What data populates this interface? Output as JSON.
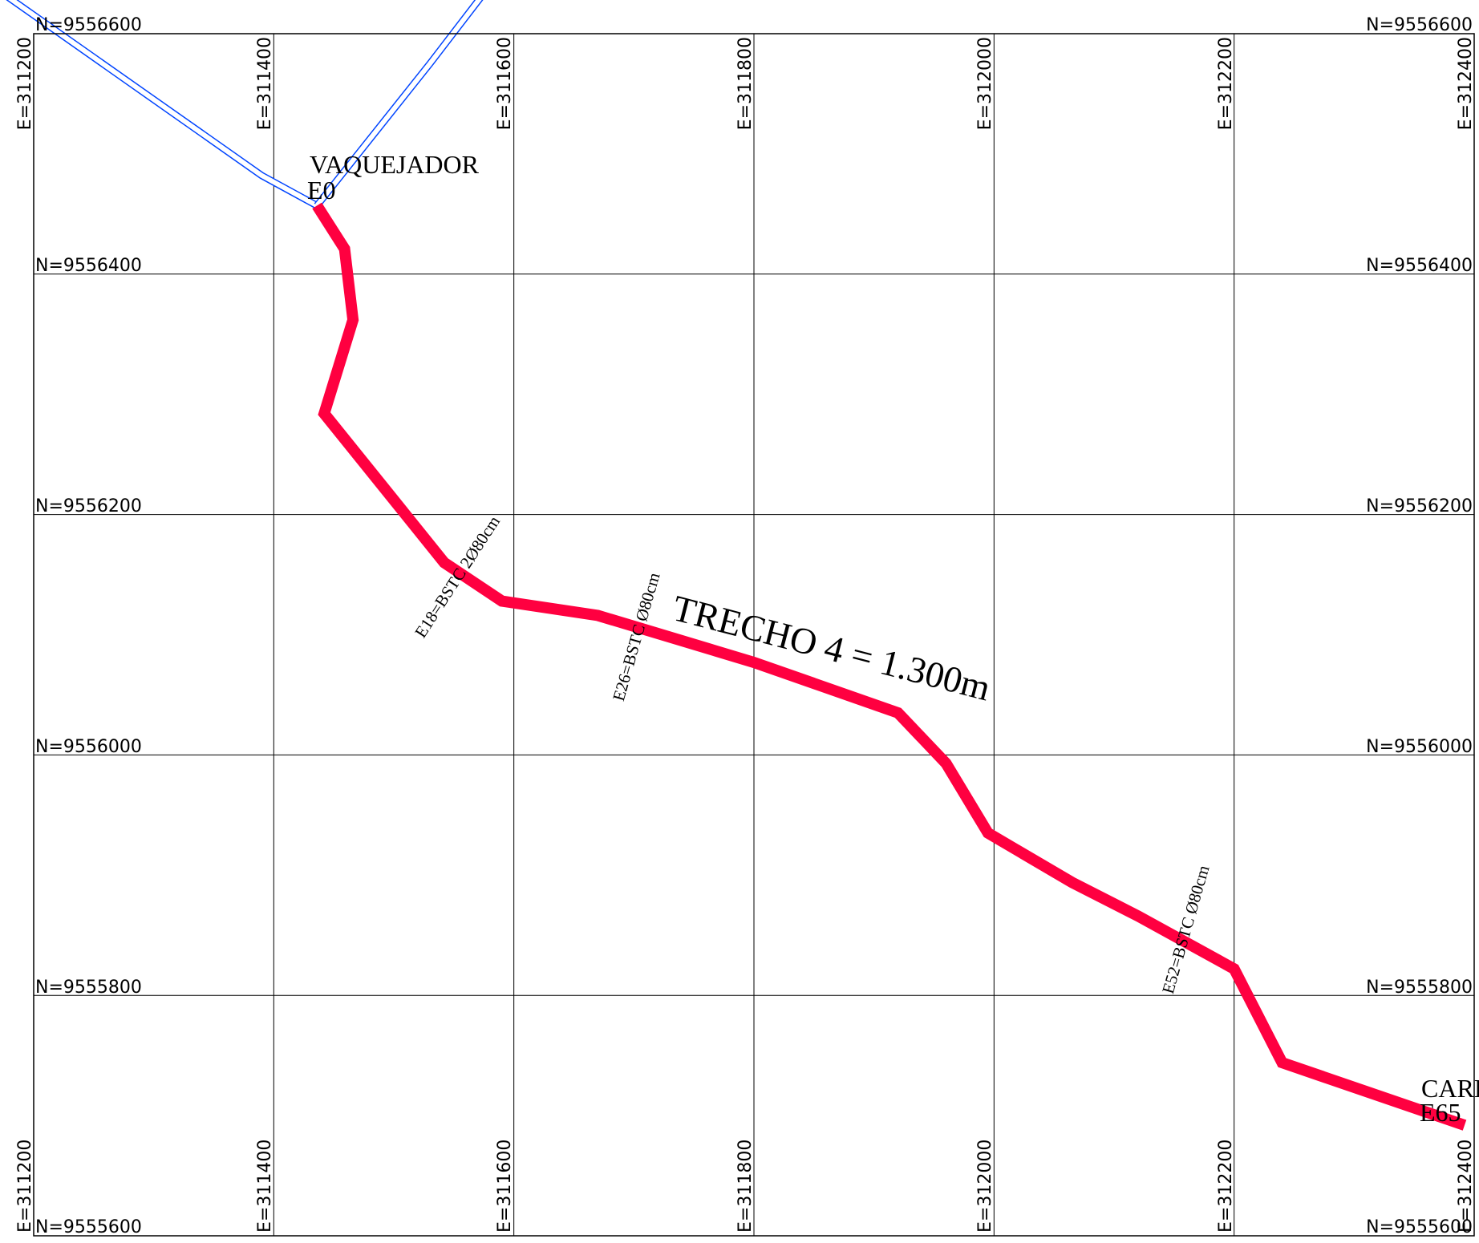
{
  "map": {
    "northing_labels": [
      "N=9556600",
      "N=9556400",
      "N=9556200",
      "N=9556000",
      "N=9555800",
      "N=9555600"
    ],
    "easting_labels": [
      "E=311200",
      "E=311400",
      "E=311600",
      "E=311800",
      "E=312000",
      "E=312200",
      "E=312400"
    ],
    "grid": {
      "easting_range": [
        311200,
        312400
      ],
      "northing_range": [
        9555600,
        9556600
      ],
      "interval_m": 200
    },
    "route": {
      "title": "TRECHO 4 = 1.300m",
      "color": "#ff0040",
      "start": {
        "name": "VAQUEJADOR",
        "station": "E0"
      },
      "end": {
        "name": "CARI",
        "station": "E65"
      },
      "culverts": [
        {
          "label": "E18=BSTC 2Ø80cm"
        },
        {
          "label": "E26=BSTC Ø80cm"
        },
        {
          "label": "E52=BSTC Ø80cm"
        }
      ],
      "path_coordinates": [
        [
          311436,
          9556457
        ],
        [
          311459,
          9556421
        ],
        [
          311466,
          9556362
        ],
        [
          311442,
          9556284
        ],
        [
          311542,
          9556160
        ],
        [
          311590,
          9556128
        ],
        [
          311670,
          9556116
        ],
        [
          311800,
          9556077
        ],
        [
          311920,
          9556035
        ],
        [
          311960,
          9555993
        ],
        [
          311995,
          9555935
        ],
        [
          312065,
          9555894
        ],
        [
          312120,
          9555866
        ],
        [
          312200,
          9555822
        ],
        [
          312240,
          9555744
        ],
        [
          312392,
          9555692
        ]
      ]
    },
    "existing_roads": {
      "color": "#0044ff",
      "road_a": [
        [
          311165,
          9556640
        ],
        [
          311390,
          9556482
        ],
        [
          311436,
          9556457
        ]
      ],
      "road_b": [
        [
          311436,
          9556457
        ],
        [
          311530,
          9556575
        ],
        [
          311580,
          9556640
        ]
      ]
    }
  }
}
